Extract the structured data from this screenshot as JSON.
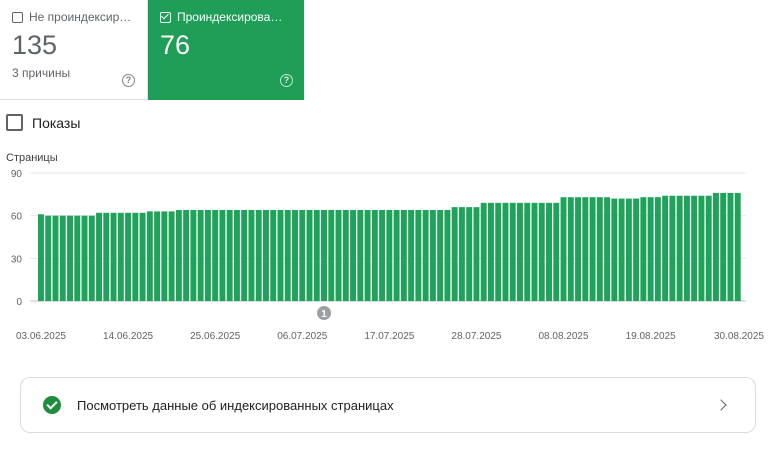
{
  "cards": {
    "unindexed": {
      "label": "Не проиндексир…",
      "value": "135",
      "sub": "3 причины",
      "checked": false
    },
    "indexed": {
      "label": "Проиндексирова…",
      "value": "76",
      "checked": true
    }
  },
  "impressions": {
    "label": "Показы",
    "checked": false
  },
  "help_icon": "help-circle-icon",
  "annotation_marker": "1",
  "info_row": {
    "label": "Посмотреть данные об индексированных страницах",
    "icon": "check-circle-icon",
    "chevron": "chevron-right-icon"
  },
  "colors": {
    "accent_green": "#1e9e57",
    "bar_green": "#1fa35a",
    "check_green": "#1e8e3e"
  },
  "chart_data": {
    "type": "bar",
    "ylabel": "Страницы",
    "ylim": [
      0,
      90
    ],
    "yticks": [
      0,
      30,
      60,
      90
    ],
    "xtick_labels": [
      "03.06.2025",
      "14.06.2025",
      "25.06.2025",
      "06.07.2025",
      "17.07.2025",
      "28.07.2025",
      "08.08.2025",
      "19.08.2025",
      "30.08.2025"
    ],
    "series": [
      {
        "values": [
          61,
          60,
          60,
          60,
          60,
          60,
          60,
          60,
          62,
          62,
          62,
          62,
          62,
          62,
          62,
          63,
          63,
          63,
          63,
          64,
          64,
          64,
          64,
          64,
          64,
          64,
          64,
          64,
          64,
          64,
          64,
          64,
          64,
          64,
          64,
          64,
          64,
          64,
          64,
          64,
          64,
          64,
          64,
          64,
          64,
          64,
          64,
          64,
          64,
          64,
          64,
          64,
          64,
          64,
          64,
          64,
          64,
          66,
          66,
          66,
          66,
          69,
          69,
          69,
          69,
          69,
          69,
          69,
          69,
          69,
          69,
          69,
          73,
          73,
          73,
          73,
          73,
          73,
          73,
          72,
          72,
          72,
          72,
          73,
          73,
          73,
          74,
          74,
          74,
          74,
          74,
          74,
          74,
          76,
          76,
          76,
          76
        ]
      }
    ],
    "annotations": [
      {
        "label": "1",
        "x_index": 39
      }
    ]
  }
}
